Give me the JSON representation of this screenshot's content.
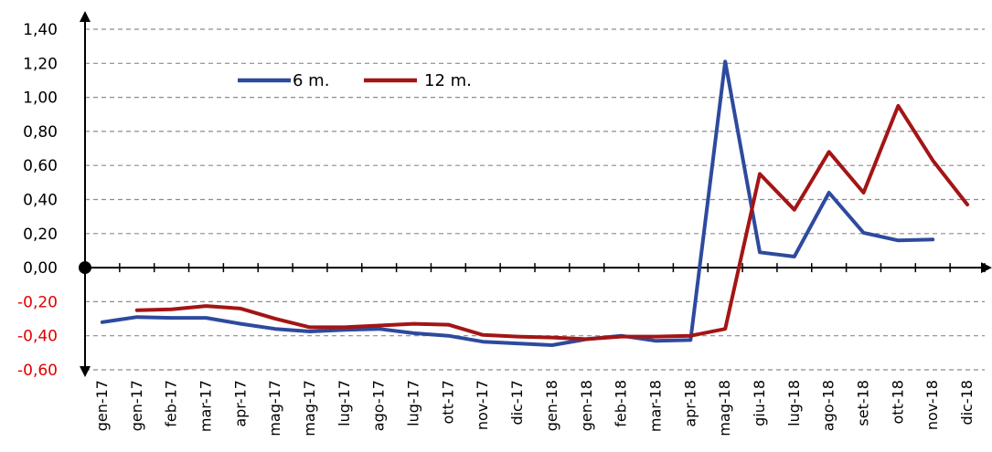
{
  "chart_data": {
    "type": "line",
    "title": "",
    "xlabel": "",
    "ylabel": "",
    "categories": [
      "gen-17",
      "gen-17",
      "feb-17",
      "mar-17",
      "apr-17",
      "mag-17",
      "mag-17",
      "lug-17",
      "ago-17",
      "lug-17",
      "ott-17",
      "nov-17",
      "dic-17",
      "gen-18",
      "gen-18",
      "feb-18",
      "mar-18",
      "apr-18",
      "mag-18",
      "giu-18",
      "lug-18",
      "ago-18",
      "set-18",
      "ott-18",
      "nov-18",
      "dic-18"
    ],
    "ylim": [
      -0.6,
      1.4
    ],
    "yticks": [
      "1,40",
      "1,20",
      "1,00",
      "0,80",
      "0,60",
      "0,40",
      "0,20",
      "0,00",
      "-0,20",
      "-0,40",
      "-0,60"
    ],
    "yticks_values": [
      1.4,
      1.2,
      1.0,
      0.8,
      0.6,
      0.4,
      0.2,
      0.0,
      -0.2,
      -0.4,
      -0.6
    ],
    "grid": true,
    "legend_position": "top-left",
    "negative_tick_color": "#e00000",
    "series": [
      {
        "name": "6 m.",
        "color": "#2e4a9e",
        "values": [
          -0.32,
          -0.29,
          -0.295,
          -0.295,
          -0.33,
          -0.36,
          -0.375,
          -0.365,
          -0.36,
          -0.385,
          -0.4,
          -0.435,
          -0.445,
          -0.455,
          -0.42,
          -0.4,
          -0.43,
          -0.425,
          1.21,
          0.09,
          0.065,
          0.44,
          0.205,
          0.16,
          0.165,
          null
        ]
      },
      {
        "name": "12 m.",
        "color": "#a31515",
        "values": [
          null,
          -0.25,
          -0.245,
          -0.225,
          -0.24,
          -0.3,
          -0.35,
          -0.35,
          -0.34,
          -0.33,
          -0.335,
          -0.395,
          -0.405,
          -0.41,
          -0.42,
          -0.405,
          -0.405,
          -0.4,
          -0.36,
          0.55,
          0.34,
          0.68,
          0.44,
          0.95,
          0.63,
          0.37
        ]
      }
    ]
  }
}
